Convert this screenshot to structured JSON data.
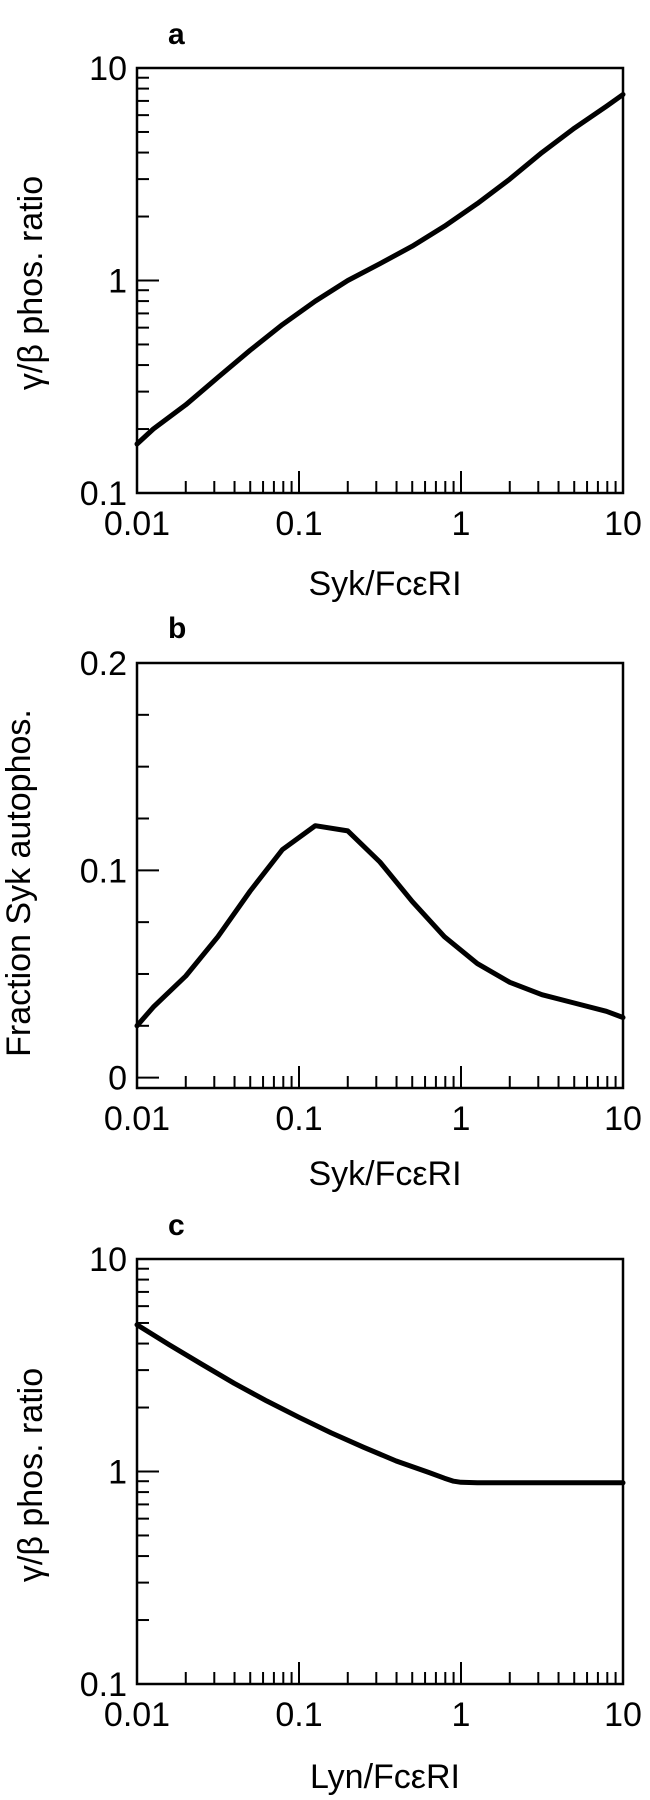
{
  "chart_data": [
    {
      "type": "line",
      "panel_label": "a",
      "xlabel": "Syk/FcεRI",
      "ylabel": "γ/β phos. ratio",
      "xscale": "log",
      "yscale": "log",
      "xlim": [
        0.01,
        10
      ],
      "ylim": [
        0.1,
        10
      ],
      "xticks": [
        {
          "value": 0.01,
          "label": "0.01"
        },
        {
          "value": 0.1,
          "label": "0.1"
        },
        {
          "value": 1,
          "label": "1"
        },
        {
          "value": 10,
          "label": "10"
        }
      ],
      "yticks": [
        {
          "value": 0.1,
          "label": "0.1"
        },
        {
          "value": 1,
          "label": "1"
        },
        {
          "value": 10,
          "label": "10"
        }
      ],
      "grid": false,
      "series": [
        {
          "x": [
            0.01,
            0.0126,
            0.02,
            0.0316,
            0.05,
            0.079,
            0.126,
            0.2,
            0.316,
            0.5,
            0.79,
            1.26,
            2,
            3.16,
            5,
            7.9,
            10
          ],
          "y": [
            0.17,
            0.2,
            0.26,
            0.35,
            0.47,
            0.62,
            0.8,
            1.0,
            1.2,
            1.45,
            1.8,
            2.3,
            3.0,
            4.0,
            5.2,
            6.6,
            7.5
          ]
        }
      ]
    },
    {
      "type": "line",
      "panel_label": "b",
      "xlabel": "Syk/FcεRI",
      "ylabel": "Fraction Syk autophos.",
      "xscale": "log",
      "yscale": "linear",
      "xlim": [
        0.01,
        10
      ],
      "ylim": [
        -0.005,
        0.2
      ],
      "xticks": [
        {
          "value": 0.01,
          "label": "0.01"
        },
        {
          "value": 0.1,
          "label": "0.1"
        },
        {
          "value": 1,
          "label": "1"
        },
        {
          "value": 10,
          "label": "10"
        }
      ],
      "yticks": [
        {
          "value": 0,
          "label": "0"
        },
        {
          "value": 0.1,
          "label": "0.1"
        },
        {
          "value": 0.2,
          "label": "0.2"
        }
      ],
      "grid": false,
      "series": [
        {
          "x": [
            0.01,
            0.0126,
            0.02,
            0.0316,
            0.05,
            0.079,
            0.126,
            0.2,
            0.316,
            0.5,
            0.79,
            1.26,
            2,
            3.16,
            5,
            7.9,
            10
          ],
          "y": [
            0.025,
            0.034,
            0.049,
            0.068,
            0.09,
            0.11,
            0.1215,
            0.119,
            0.104,
            0.085,
            0.068,
            0.055,
            0.046,
            0.04,
            0.036,
            0.032,
            0.029
          ]
        }
      ]
    },
    {
      "type": "line",
      "panel_label": "c",
      "xlabel": "Lyn/FcεRI",
      "ylabel": "γ/β phos. ratio",
      "xscale": "log",
      "yscale": "log",
      "xlim": [
        0.01,
        10
      ],
      "ylim": [
        0.1,
        10
      ],
      "xticks": [
        {
          "value": 0.01,
          "label": "0.01"
        },
        {
          "value": 0.1,
          "label": "0.1"
        },
        {
          "value": 1,
          "label": "1"
        },
        {
          "value": 10,
          "label": "10"
        }
      ],
      "yticks": [
        {
          "value": 0.1,
          "label": "0.1"
        },
        {
          "value": 1,
          "label": "1"
        },
        {
          "value": 10,
          "label": "10"
        }
      ],
      "grid": false,
      "series": [
        {
          "x": [
            0.01,
            0.0158,
            0.0251,
            0.0398,
            0.0631,
            0.1,
            0.158,
            0.251,
            0.398,
            0.631,
            0.79,
            0.9,
            1.0,
            1.26,
            2,
            5,
            10
          ],
          "y": [
            4.9,
            3.95,
            3.2,
            2.6,
            2.15,
            1.8,
            1.52,
            1.3,
            1.12,
            0.99,
            0.93,
            0.9,
            0.89,
            0.885,
            0.885,
            0.885,
            0.885
          ]
        }
      ]
    }
  ]
}
